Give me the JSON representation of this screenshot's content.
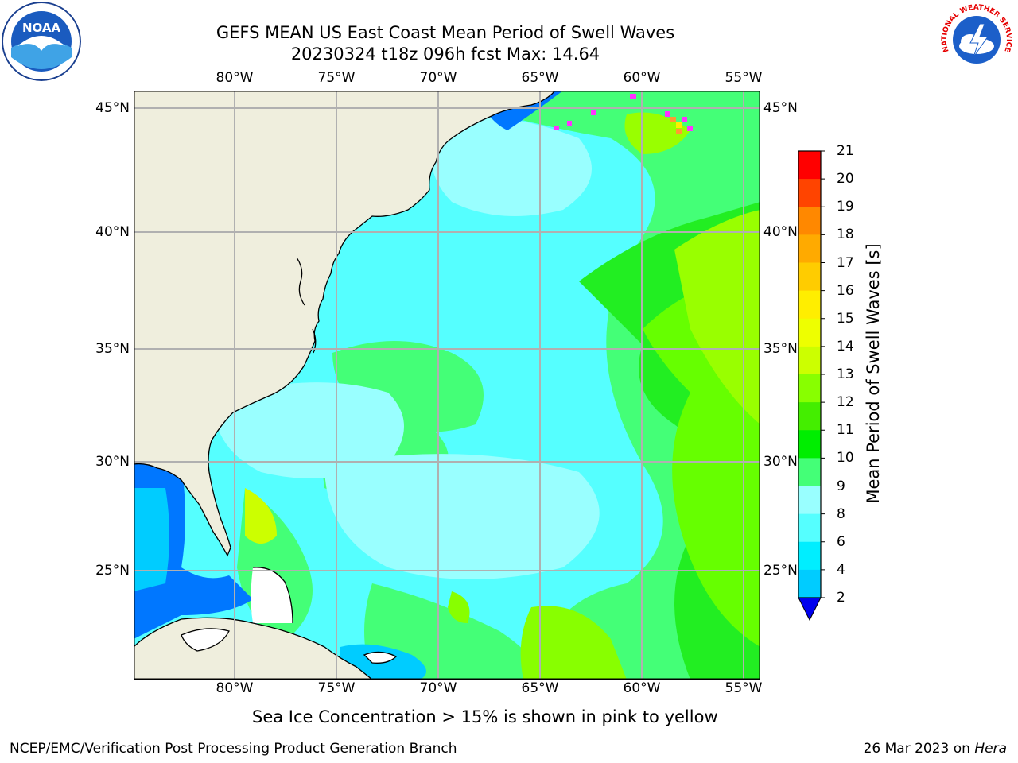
{
  "header": {
    "title": "GEFS MEAN US East Coast Mean Period of Swell Waves",
    "subtitle": "20230324 t18z 096h fcst   Max: 14.64"
  },
  "map": {
    "lon_labels": [
      "80°W",
      "75°W",
      "70°W",
      "65°W",
      "60°W",
      "55°W"
    ],
    "lat_labels": [
      "45°N",
      "40°N",
      "35°N",
      "30°N",
      "25°N"
    ],
    "colors": {
      "land": "#efeedd",
      "grid": "#b0b0b0",
      "coast": "#000000",
      "ice": "#ff33ff"
    }
  },
  "colorbar": {
    "label": "Mean Period of Swell Waves [s]",
    "ticks": [
      "2",
      "4",
      "6",
      "8",
      "9",
      "10",
      "11",
      "12",
      "13",
      "14",
      "15",
      "16",
      "17",
      "18",
      "19",
      "20",
      "21"
    ],
    "colors": [
      "#0077ff",
      "#00ccff",
      "#00eeff",
      "#55ffff",
      "#99ffff",
      "#44ff77",
      "#00ee00",
      "#44ee00",
      "#88ff00",
      "#ccff00",
      "#eeff00",
      "#ffee00",
      "#ffcc00",
      "#ffaa00",
      "#ff8800",
      "#ff4400",
      "#ff0000"
    ]
  },
  "caption": "Sea Ice Concentration > 15% is shown in pink to yellow",
  "footer": {
    "left": "NCEP/EMC/Verification Post Processing Product Generation Branch",
    "date": "26 Mar 2023 on",
    "host": "Hera"
  },
  "logos": {
    "noaa_text": "NOAA",
    "nws_text": "NATIONAL WEATHER SERVICE"
  }
}
